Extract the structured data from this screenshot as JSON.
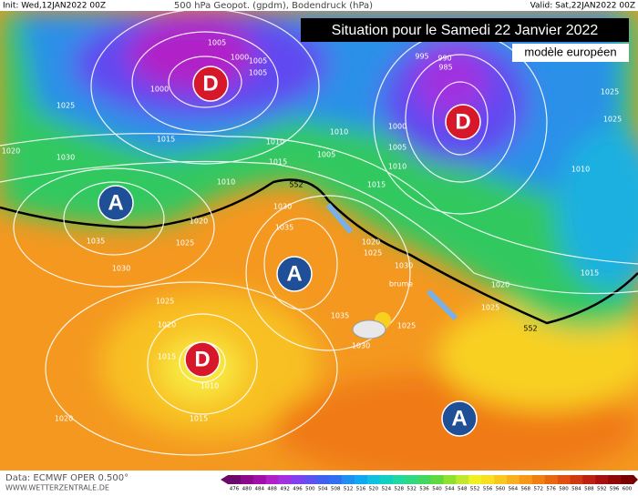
{
  "header": {
    "init": "Init: Wed,12JAN2022 00Z",
    "product": "500 hPa Geopot. (gpdm), Bodendruck (hPa)",
    "valid": "Valid: Sat,22JAN2022 00Z"
  },
  "overlay": {
    "title": "Situation pour le Samedi 22 Janvier 2022",
    "subtitle": "modèle européen"
  },
  "centers": [
    {
      "label": "D",
      "color": "#d7182a"
    },
    {
      "label": "D",
      "color": "#d7182a"
    },
    {
      "label": "A",
      "color": "#1f4f96"
    },
    {
      "label": "A",
      "color": "#1f4f96"
    },
    {
      "label": "D",
      "color": "#d7182a"
    },
    {
      "label": "A",
      "color": "#1f4f96"
    }
  ],
  "isobar_labels": [
    1005,
    1000,
    1005,
    1005,
    1000,
    1025,
    1015,
    1010,
    1005,
    1010,
    1020,
    1030,
    1015,
    1010,
    1020,
    1025,
    1035,
    1030,
    1030,
    1035,
    1020,
    1025,
    1030,
    1025,
    1020,
    1015,
    1010,
    1015,
    1020,
    1035,
    1030,
    1025,
    1020,
    1025,
    1015,
    1010,
    1025,
    1025,
    1000,
    1005,
    1010,
    1015,
    995,
    990,
    985
  ],
  "contour_labels": [
    552,
    552
  ],
  "weather_label": "brume",
  "footer": {
    "data": "Data: ECMWF OPER 0.500°",
    "site": "WWW.WETTERZENTRALE.DE"
  },
  "colorbar": {
    "ticks": [
      476,
      480,
      484,
      488,
      492,
      496,
      500,
      504,
      508,
      512,
      516,
      520,
      524,
      528,
      532,
      536,
      540,
      544,
      548,
      552,
      556,
      560,
      564,
      568,
      572,
      576,
      580,
      584,
      588,
      592,
      596,
      600
    ],
    "colors": [
      "#6a0a6a",
      "#8a0a8a",
      "#a010a8",
      "#b020c8",
      "#a030e0",
      "#8040f0",
      "#6050f0",
      "#4060f0",
      "#3070f0",
      "#2090f0",
      "#10a8f0",
      "#10c0e0",
      "#10d0c0",
      "#20d8a0",
      "#30d880",
      "#40d860",
      "#60d840",
      "#90e030",
      "#c0e830",
      "#f0f020",
      "#f8e020",
      "#f8c820",
      "#f8b020",
      "#f89818",
      "#f08010",
      "#e86810",
      "#e05010",
      "#d03810",
      "#c02010",
      "#a81010",
      "#900808",
      "#780000"
    ]
  }
}
